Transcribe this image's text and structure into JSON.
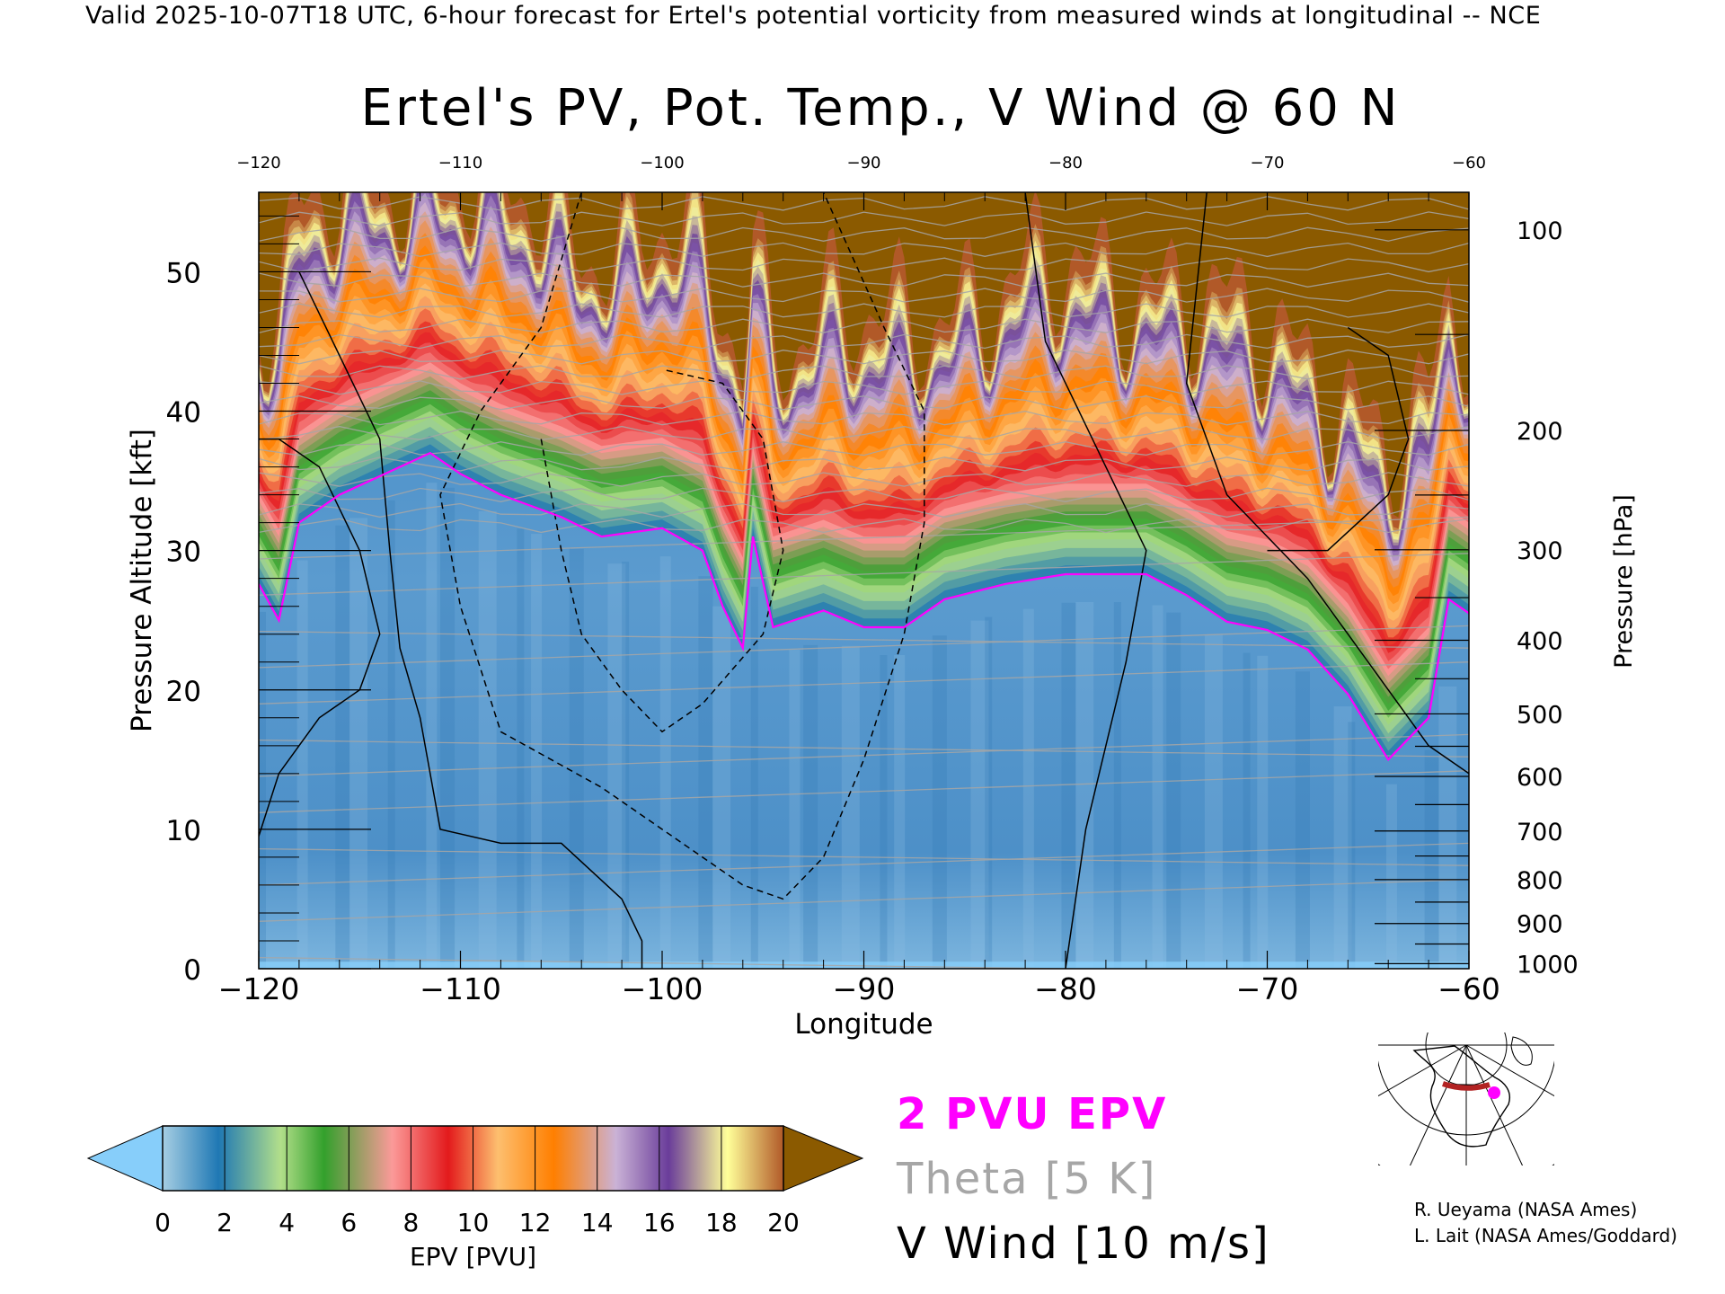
{
  "header": {
    "subtitle": "Valid 2025-10-07T18 UTC, 6-hour forecast for Ertel's potential vorticity from measured winds at longitudinal -- NCE"
  },
  "chart_data": {
    "type": "heatmap",
    "title": "Ertel's PV, Pot. Temp., V Wind @ 60 N",
    "xlabel": "Longitude",
    "ylabel": "Pressure Altitude [kft]",
    "y2label": "Pressure [hPa]",
    "xlim": [
      -120,
      -60
    ],
    "ylim": [
      0,
      55.7
    ],
    "xticks": [
      -120,
      -110,
      -100,
      -90,
      -80,
      -70,
      -60
    ],
    "yticks": [
      0,
      10,
      20,
      30,
      40,
      50
    ],
    "y2ticks": [
      100,
      200,
      300,
      400,
      500,
      600,
      700,
      800,
      900,
      1000
    ],
    "colorbar": {
      "label": "EPV [PVU]",
      "ticks": [
        0,
        2,
        4,
        6,
        8,
        10,
        12,
        14,
        16,
        18,
        20
      ],
      "range": [
        0,
        20
      ],
      "under_color": "#87cefa",
      "over_color": "#8b5a00",
      "color_stops": [
        {
          "v": 0,
          "c": "#a6cee3"
        },
        {
          "v": 1.8,
          "c": "#1f78b4"
        },
        {
          "v": 3.8,
          "c": "#b2df8a"
        },
        {
          "v": 5.2,
          "c": "#33a02c"
        },
        {
          "v": 7.4,
          "c": "#fb9a99"
        },
        {
          "v": 9.2,
          "c": "#e31a1c"
        },
        {
          "v": 10.8,
          "c": "#fdbf6f"
        },
        {
          "v": 12.6,
          "c": "#ff7f00"
        },
        {
          "v": 14.6,
          "c": "#cab2d6"
        },
        {
          "v": 16.3,
          "c": "#6a3d9a"
        },
        {
          "v": 18.2,
          "c": "#ffff99"
        },
        {
          "v": 20,
          "c": "#b15928"
        }
      ]
    },
    "pv2_contour": {
      "lon": [
        -120,
        -119,
        -118,
        -116,
        -113,
        -111.5,
        -110,
        -108,
        -105,
        -103,
        -100,
        -98,
        -97,
        -96,
        -95.5,
        -94.5,
        -92,
        -90,
        -88,
        -86,
        -83,
        -80,
        -76,
        -74,
        -72,
        -70,
        -68,
        -66,
        -64,
        -62,
        -61,
        -60
      ],
      "alt_kft": [
        27.6,
        25,
        32,
        34,
        36,
        37,
        35.5,
        34,
        32.4,
        31,
        31.6,
        30,
        26,
        23,
        31,
        24.5,
        25.7,
        24.5,
        24.5,
        26.5,
        27.6,
        28.3,
        28.3,
        26.8,
        24.9,
        24.3,
        22.9,
        19.7,
        15,
        18,
        26.5,
        25.5
      ]
    },
    "legend": {
      "pv2": "2 PVU EPV",
      "theta": "Theta [5 K]",
      "vwind": "V Wind [10 m/s]"
    },
    "colors": {
      "pv2": "#ff00ff",
      "theta": "#a6a6a6",
      "vwind": "#000000"
    }
  },
  "credits": [
    "R. Ueyama (NASA Ames)",
    "L. Lait (NASA Ames/Goddard)"
  ]
}
